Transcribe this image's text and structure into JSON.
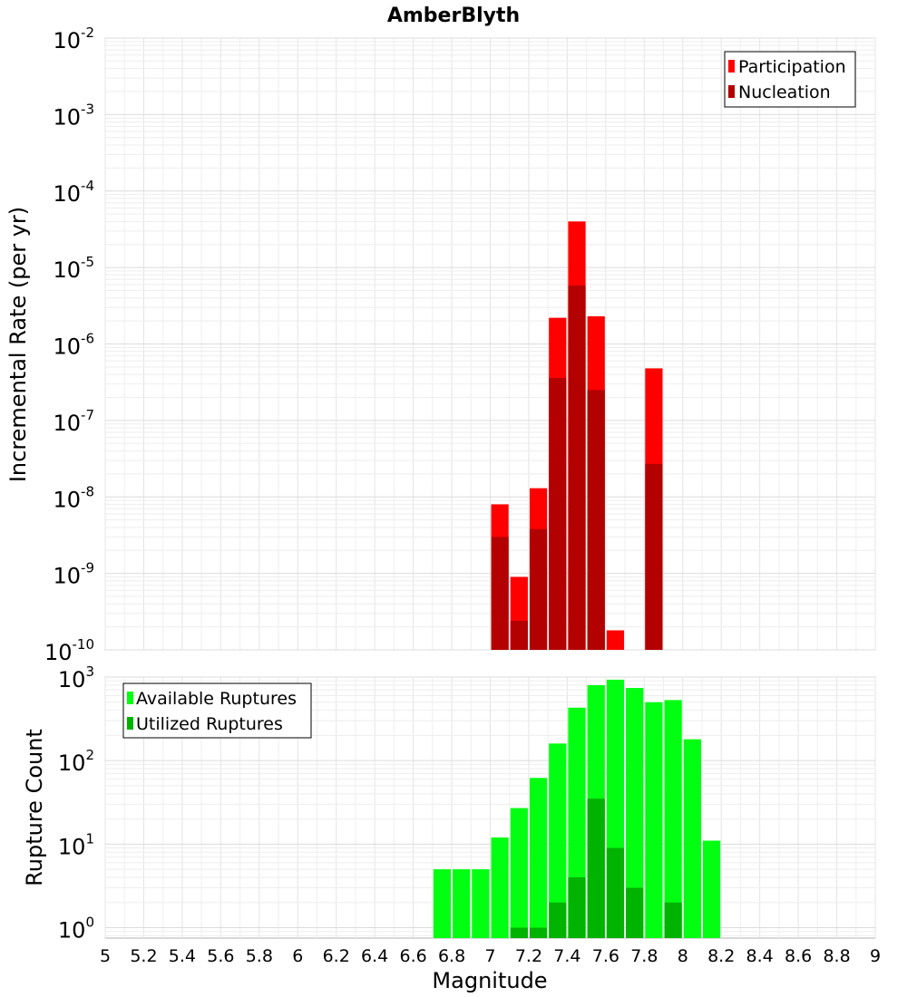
{
  "chart_data": [
    {
      "type": "bar",
      "title": "AmberBlyth",
      "xlabel": "",
      "ylabel": "Incremental Rate (per yr)",
      "yscale": "log",
      "xlim": [
        5,
        9
      ],
      "ylim": [
        1e-10,
        0.01
      ],
      "ytick_exponents": [
        -2,
        -3,
        -4,
        -5,
        -6,
        -7,
        -8,
        -9,
        -10
      ],
      "grid": true,
      "legend_position": "top-right",
      "bin_width": 0.1,
      "x": [
        7.1,
        7.2,
        7.3,
        7.4,
        7.5,
        7.6,
        7.7,
        7.8,
        7.9
      ],
      "series": [
        {
          "name": "Participation",
          "color": "#ff0000",
          "values": [
            8e-09,
            9e-10,
            1.3e-08,
            2.2e-06,
            4e-05,
            2.3e-06,
            1.8e-10,
            null,
            4.8e-07
          ]
        },
        {
          "name": "Nucleation",
          "color": "#b30000",
          "values": [
            3e-09,
            2.4e-10,
            3.8e-09,
            3.6e-07,
            5.8e-06,
            2.5e-07,
            null,
            null,
            2.7e-08
          ]
        }
      ]
    },
    {
      "type": "bar",
      "title": "",
      "xlabel": "Magnitude",
      "ylabel": "Rupture Count",
      "yscale": "log",
      "xlim": [
        5,
        9
      ],
      "ylim": [
        0.75,
        1000
      ],
      "ytick_exponents": [
        3,
        2,
        1,
        0
      ],
      "xticks": [
        "5",
        "5.2",
        "5.4",
        "5.6",
        "5.8",
        "6",
        "6.2",
        "6.4",
        "6.6",
        "6.8",
        "7",
        "7.2",
        "7.4",
        "7.6",
        "7.8",
        "8",
        "8.2",
        "8.4",
        "8.6",
        "8.8",
        "9"
      ],
      "grid": true,
      "legend_position": "top-left",
      "bin_width": 0.1,
      "x": [
        6.75,
        6.85,
        6.95,
        7.05,
        7.15,
        7.25,
        7.35,
        7.45,
        7.55,
        7.65,
        7.75,
        7.85,
        7.95,
        8.05,
        8.15
      ],
      "series": [
        {
          "name": "Available Ruptures",
          "color": "#00ff11",
          "values": [
            5,
            5,
            5,
            12,
            27,
            62,
            160,
            430,
            800,
            930,
            740,
            500,
            530,
            180,
            11
          ]
        },
        {
          "name": "Utilized Ruptures",
          "color": "#00b300",
          "values": [
            null,
            null,
            null,
            null,
            1,
            1,
            2,
            4,
            35,
            9,
            3,
            null,
            2,
            null,
            null
          ]
        }
      ]
    }
  ]
}
